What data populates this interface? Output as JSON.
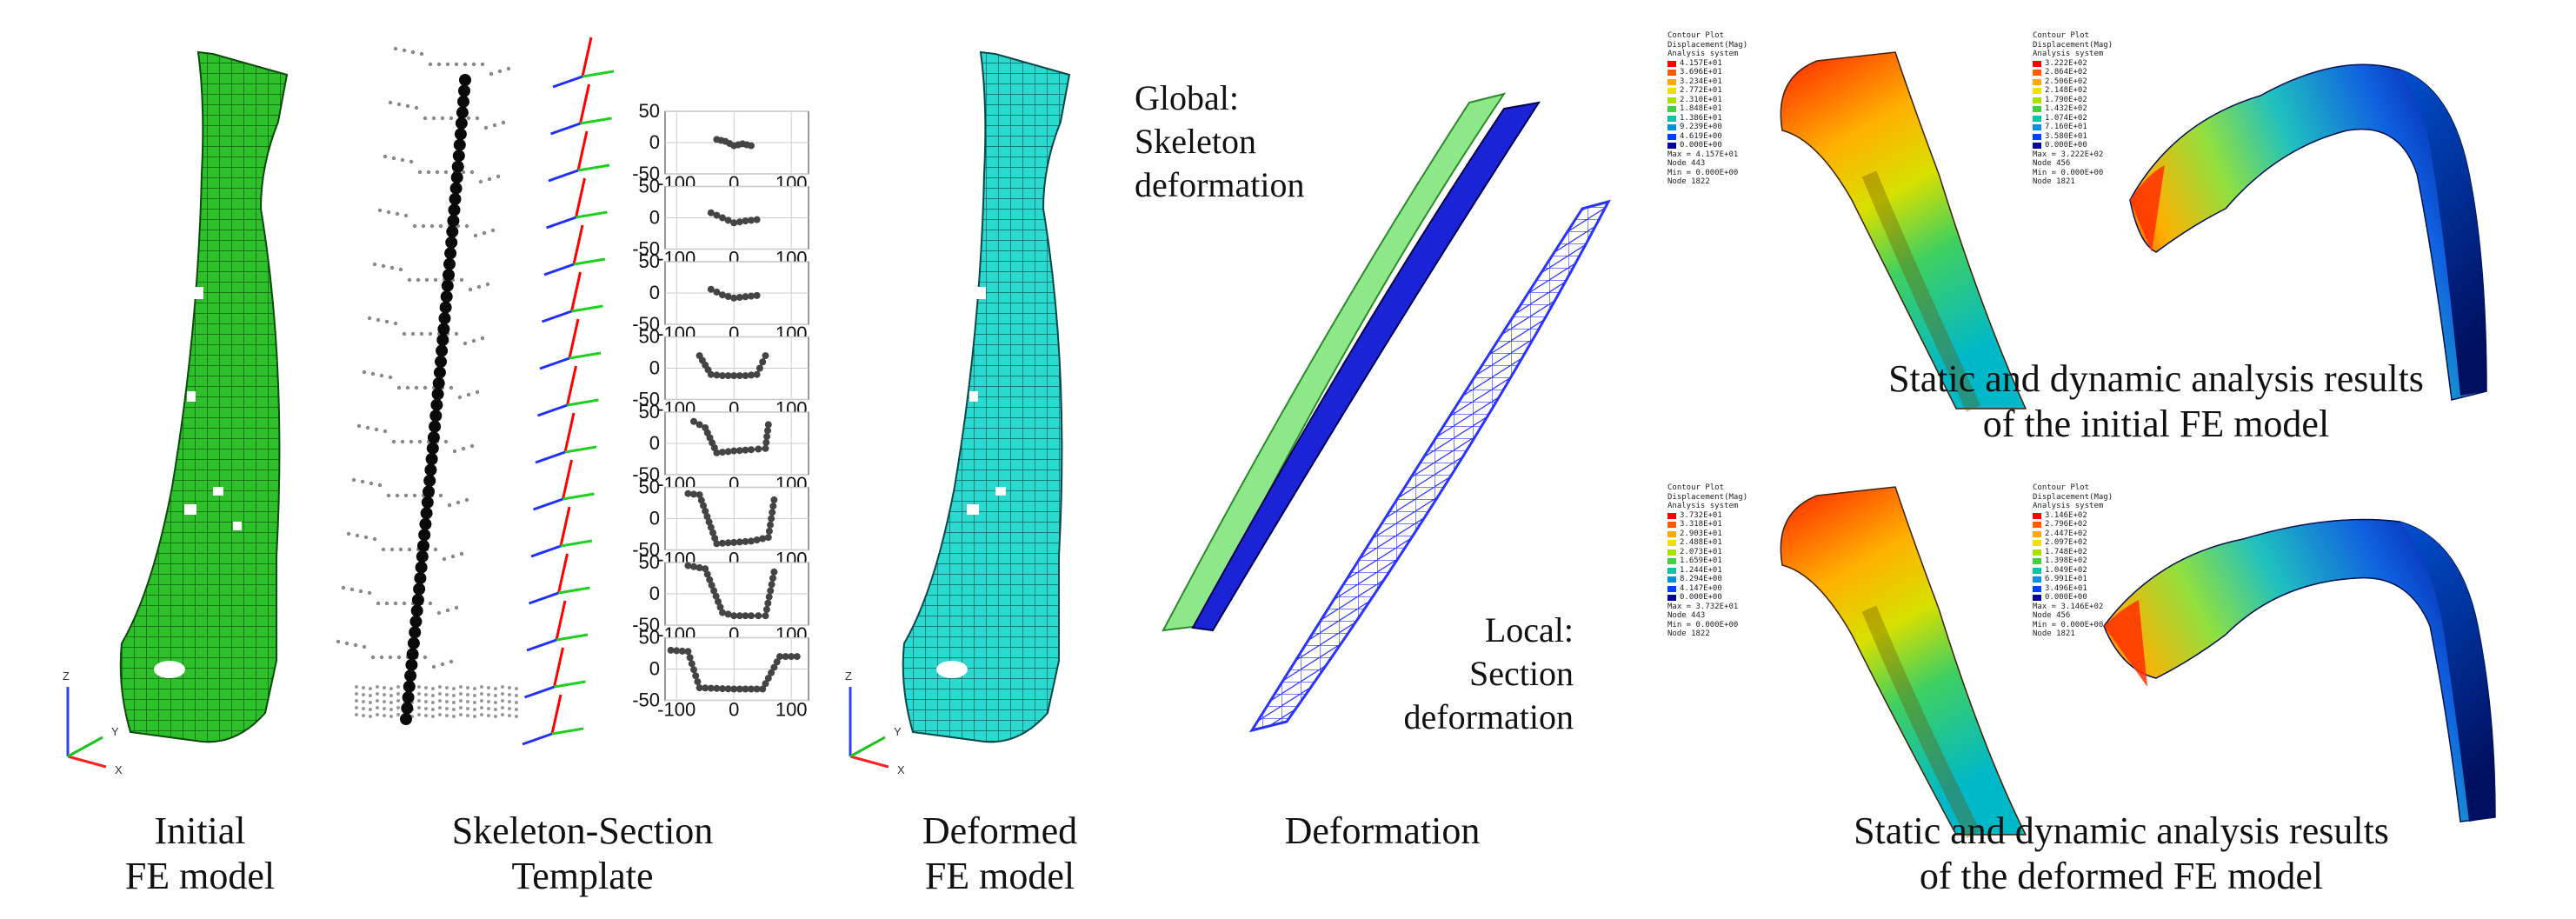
{
  "captions": {
    "initial": [
      "Initial",
      "FE model"
    ],
    "template": [
      "Skeleton-Section",
      "Template"
    ],
    "deformed": [
      "Deformed",
      "FE model"
    ],
    "deformation": [
      "Deformation"
    ],
    "static_initial": [
      "Static and dynamic analysis results",
      "of the initial FE model"
    ],
    "static_deformed": [
      "Static and dynamic analysis results",
      "of the deformed FE model"
    ]
  },
  "annotations": {
    "global": [
      "Global:",
      "Skeleton",
      "deformation"
    ],
    "local": [
      "Local:",
      "Section",
      "deformation"
    ]
  },
  "axis_triad": {
    "z": "Z",
    "y": "Y",
    "x": "X"
  },
  "section_plots": {
    "y_ticks": [
      "50",
      "0",
      "-50"
    ],
    "x_ticks": [
      "-100",
      "0",
      "100"
    ],
    "x_range": [
      -120,
      130
    ],
    "y_range": [
      -50,
      50
    ],
    "profiles": [
      [
        [
          -30,
          5
        ],
        [
          -15,
          2
        ],
        [
          0,
          -5
        ],
        [
          15,
          -2
        ],
        [
          30,
          -5
        ]
      ],
      [
        [
          -40,
          8
        ],
        [
          -20,
          0
        ],
        [
          0,
          -8
        ],
        [
          20,
          -5
        ],
        [
          40,
          -3
        ]
      ],
      [
        [
          -40,
          6
        ],
        [
          -20,
          -3
        ],
        [
          0,
          -8
        ],
        [
          20,
          -6
        ],
        [
          40,
          -4
        ]
      ],
      [
        [
          -60,
          20
        ],
        [
          -40,
          -10
        ],
        [
          -20,
          -12
        ],
        [
          0,
          -12
        ],
        [
          20,
          -12
        ],
        [
          40,
          -10
        ],
        [
          55,
          20
        ]
      ],
      [
        [
          -70,
          35
        ],
        [
          -50,
          25
        ],
        [
          -30,
          -15
        ],
        [
          0,
          -12
        ],
        [
          30,
          -10
        ],
        [
          55,
          -8
        ],
        [
          60,
          30
        ]
      ],
      [
        [
          -80,
          40
        ],
        [
          -60,
          38
        ],
        [
          -30,
          -40
        ],
        [
          0,
          -38
        ],
        [
          30,
          -36
        ],
        [
          60,
          -30
        ],
        [
          70,
          30
        ]
      ],
      [
        [
          -80,
          45
        ],
        [
          -50,
          40
        ],
        [
          -20,
          -30
        ],
        [
          0,
          -35
        ],
        [
          30,
          -35
        ],
        [
          55,
          -35
        ],
        [
          70,
          35
        ]
      ],
      [
        [
          -110,
          30
        ],
        [
          -80,
          28
        ],
        [
          -60,
          -30
        ],
        [
          0,
          -32
        ],
        [
          50,
          -32
        ],
        [
          80,
          20
        ],
        [
          110,
          20
        ]
      ]
    ]
  },
  "legends": [
    {
      "title": [
        "Contour Plot",
        "Displacement(Mag)",
        "Analysis system"
      ],
      "values": [
        "4.157E+01",
        "3.696E+01",
        "3.234E+01",
        "2.772E+01",
        "2.310E+01",
        "1.848E+01",
        "1.386E+01",
        "9.239E+00",
        "4.619E+00",
        "0.000E+00"
      ],
      "stats": [
        "Max = 4.157E+01",
        "Node 443",
        "Min = 0.000E+00",
        "Node 1822"
      ]
    },
    {
      "title": [
        "Contour Plot",
        "Displacement(Mag)",
        "Analysis system"
      ],
      "values": [
        "3.222E+02",
        "2.864E+02",
        "2.506E+02",
        "2.148E+02",
        "1.790E+02",
        "1.432E+02",
        "1.074E+02",
        "7.160E+01",
        "3.580E+01",
        "0.000E+00"
      ],
      "stats": [
        "Max = 3.222E+02",
        "Node 456",
        "Min = 0.000E+00",
        "Node 1821"
      ]
    },
    {
      "title": [
        "Contour Plot",
        "Displacement(Mag)",
        "Analysis system"
      ],
      "values": [
        "3.732E+01",
        "3.318E+01",
        "2.903E+01",
        "2.488E+01",
        "2.073E+01",
        "1.659E+01",
        "1.244E+01",
        "8.294E+00",
        "4.147E+00",
        "0.000E+00"
      ],
      "stats": [
        "Max = 3.732E+01",
        "Node 443",
        "Min = 0.000E+00",
        "Node 1822"
      ]
    },
    {
      "title": [
        "Contour Plot",
        "Displacement(Mag)",
        "Analysis system"
      ],
      "values": [
        "3.146E+02",
        "2.796E+02",
        "2.447E+02",
        "2.097E+02",
        "1.748E+02",
        "1.398E+02",
        "1.049E+02",
        "6.991E+01",
        "3.496E+01",
        "0.000E+00"
      ],
      "stats": [
        "Max = 3.146E+02",
        "Node 456",
        "Min = 0.000E+00",
        "Node 1821"
      ]
    }
  ],
  "colors": {
    "initial_mesh": "#2ec02a",
    "deformed_mesh": "#2ad9cf",
    "skeleton_green": "#8ee88a",
    "skeleton_blue": "#1a23d6",
    "section_blue": "#5560ff",
    "legend_scale": [
      "#ff0000",
      "#ff5a00",
      "#ffa800",
      "#f0e000",
      "#a8e000",
      "#40d040",
      "#00c8a0",
      "#0090e0",
      "#0040ff",
      "#0000a0"
    ]
  }
}
